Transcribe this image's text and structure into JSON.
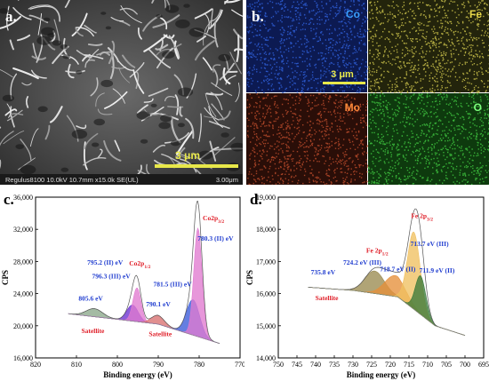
{
  "panel_a": {
    "label": "a.",
    "scale_bar": "3 μm",
    "info_text": "Regulus8100 10.0kV 10.7mm x15.0k SE(UL)",
    "scale_text": "3.00μm"
  },
  "panel_b": {
    "label": "b.",
    "scale_bar": "3 μm",
    "maps": [
      {
        "element": "Co",
        "color": "#2f5fd8",
        "bg": "#0c1a52",
        "label_color": "#3aa0ff"
      },
      {
        "element": "Fe",
        "color": "#c8c04a",
        "bg": "#23240c",
        "label_color": "#e8d84a"
      },
      {
        "element": "Mo",
        "color": "#b84a2a",
        "bg": "#2a0e08",
        "label_color": "#ff8a3a"
      },
      {
        "element": "O",
        "color": "#3ec23e",
        "bg": "#0e3a0e",
        "label_color": "#7dff7d"
      }
    ]
  },
  "chart_data": [
    {
      "type": "line",
      "panel_label": "c.",
      "xlabel": "Binding energy (eV)",
      "ylabel": "CPS",
      "xlim": [
        820,
        770
      ],
      "ylim": [
        16000,
        36000
      ],
      "xticks": [
        "820",
        "810",
        "800",
        "790",
        "780",
        "770"
      ],
      "yticks": [
        "16,000",
        "20,000",
        "24,000",
        "28,000",
        "32,000",
        "36,000"
      ],
      "peaks": [
        {
          "center": 805.6,
          "height": 1000,
          "width": 2.0,
          "color": "#8aa88a"
        },
        {
          "center": 796.3,
          "height": 2000,
          "width": 1.4,
          "color": "#6a2fd0"
        },
        {
          "center": 795.2,
          "height": 4200,
          "width": 1.0,
          "color": "#e07ad0"
        },
        {
          "center": 790.1,
          "height": 1100,
          "width": 1.6,
          "color": "#d87070"
        },
        {
          "center": 781.5,
          "height": 4400,
          "width": 1.6,
          "color": "#3a5ad8"
        },
        {
          "center": 780.3,
          "height": 13500,
          "width": 1.0,
          "color": "#e07ad0"
        }
      ],
      "background": [
        [
          812,
          21500
        ],
        [
          800,
          20800
        ],
        [
          790,
          20200
        ],
        [
          775,
          17800
        ]
      ],
      "annotations": [
        {
          "text": "Co2p3/2",
          "main": "Co2p",
          "sub": "3/2",
          "x": 776.5,
          "y": 33100,
          "color": "#e0202a"
        },
        {
          "text": "780.3 (II) eV",
          "main": "780.3 (II) eV",
          "sub": "",
          "x": 776,
          "y": 30600,
          "color": "#1f3ccf"
        },
        {
          "text": "795.2 (II) eV",
          "main": "795.2 (II) eV",
          "sub": "",
          "x": 803,
          "y": 27600,
          "color": "#1f3ccf"
        },
        {
          "text": "Co2p1/2",
          "main": "Co2p",
          "sub": "1/2",
          "x": 794.5,
          "y": 27500,
          "color": "#e0202a"
        },
        {
          "text": "796.3 (III) eV",
          "main": "796.3 (III) eV",
          "sub": "",
          "x": 801.5,
          "y": 25900,
          "color": "#1f3ccf"
        },
        {
          "text": "781.5 (III) eV",
          "main": "781.5 (III) eV",
          "sub": "",
          "x": 786.5,
          "y": 24900,
          "color": "#1f3ccf"
        },
        {
          "text": "805.6 eV",
          "main": "805.6 eV",
          "sub": "",
          "x": 806.5,
          "y": 23100,
          "color": "#1f3ccf"
        },
        {
          "text": "790.1 eV",
          "main": "790.1 eV",
          "sub": "",
          "x": 790,
          "y": 22400,
          "color": "#1f3ccf"
        },
        {
          "text": "Satellite",
          "main": "Satellite",
          "sub": "",
          "x": 806,
          "y": 19100,
          "color": "#e0202a"
        },
        {
          "text": "Satellite",
          "main": "Satellite",
          "sub": "",
          "x": 789.5,
          "y": 18700,
          "color": "#e0202a"
        }
      ]
    },
    {
      "type": "line",
      "panel_label": "d.",
      "xlabel": "Binding energy (eV)",
      "ylabel": "CPS",
      "xlim": [
        750,
        695
      ],
      "ylim": [
        14000,
        19000
      ],
      "xticks": [
        "750",
        "745",
        "740",
        "735",
        "730",
        "725",
        "720",
        "715",
        "710",
        "705",
        "700",
        "695"
      ],
      "yticks": [
        "14,000",
        "15,000",
        "16,000",
        "17,000",
        "18,000",
        "19,000"
      ],
      "peaks": [
        {
          "center": 724.2,
          "height": 700,
          "width": 2.6,
          "color": "#9a8a50"
        },
        {
          "center": 718.7,
          "height": 650,
          "width": 2.8,
          "color": "#e6903a"
        },
        {
          "center": 713.7,
          "height": 2400,
          "width": 1.7,
          "color": "#f0c060"
        },
        {
          "center": 711.9,
          "height": 1200,
          "width": 1.4,
          "color": "#3a7a3a"
        }
      ],
      "background": [
        [
          742,
          16200
        ],
        [
          730,
          16100
        ],
        [
          718,
          15900
        ],
        [
          708,
          15000
        ],
        [
          700,
          14700
        ]
      ],
      "annotations": [
        {
          "text": "Fe 2p3/2",
          "main": "Fe 2p",
          "sub": "3/2",
          "x": 711.5,
          "y": 18350,
          "color": "#e0202a"
        },
        {
          "text": "713.7 eV (III)",
          "main": "713.7 eV (III)",
          "sub": "",
          "x": 709.5,
          "y": 17480,
          "color": "#1f3ccf"
        },
        {
          "text": "Fe 2p1/2",
          "main": "Fe 2p",
          "sub": "1/2",
          "x": 723.5,
          "y": 17280,
          "color": "#e0202a"
        },
        {
          "text": "724.2 eV (III)",
          "main": "724.2 eV (III)",
          "sub": "",
          "x": 727.5,
          "y": 16900,
          "color": "#1f3ccf"
        },
        {
          "text": "718.7 eV (II)",
          "main": "718.7 eV (II)",
          "sub": "",
          "x": 718,
          "y": 16700,
          "color": "#1f3ccf"
        },
        {
          "text": "711.9 eV (II)",
          "main": "711.9 eV (II)",
          "sub": "",
          "x": 707.5,
          "y": 16650,
          "color": "#1f3ccf"
        },
        {
          "text": "735.8 eV",
          "main": "735.8 eV",
          "sub": "",
          "x": 738,
          "y": 16600,
          "color": "#1f3ccf"
        },
        {
          "text": "Satellite",
          "main": "Satellite",
          "sub": "",
          "x": 737,
          "y": 15800,
          "color": "#e0202a"
        }
      ]
    }
  ]
}
